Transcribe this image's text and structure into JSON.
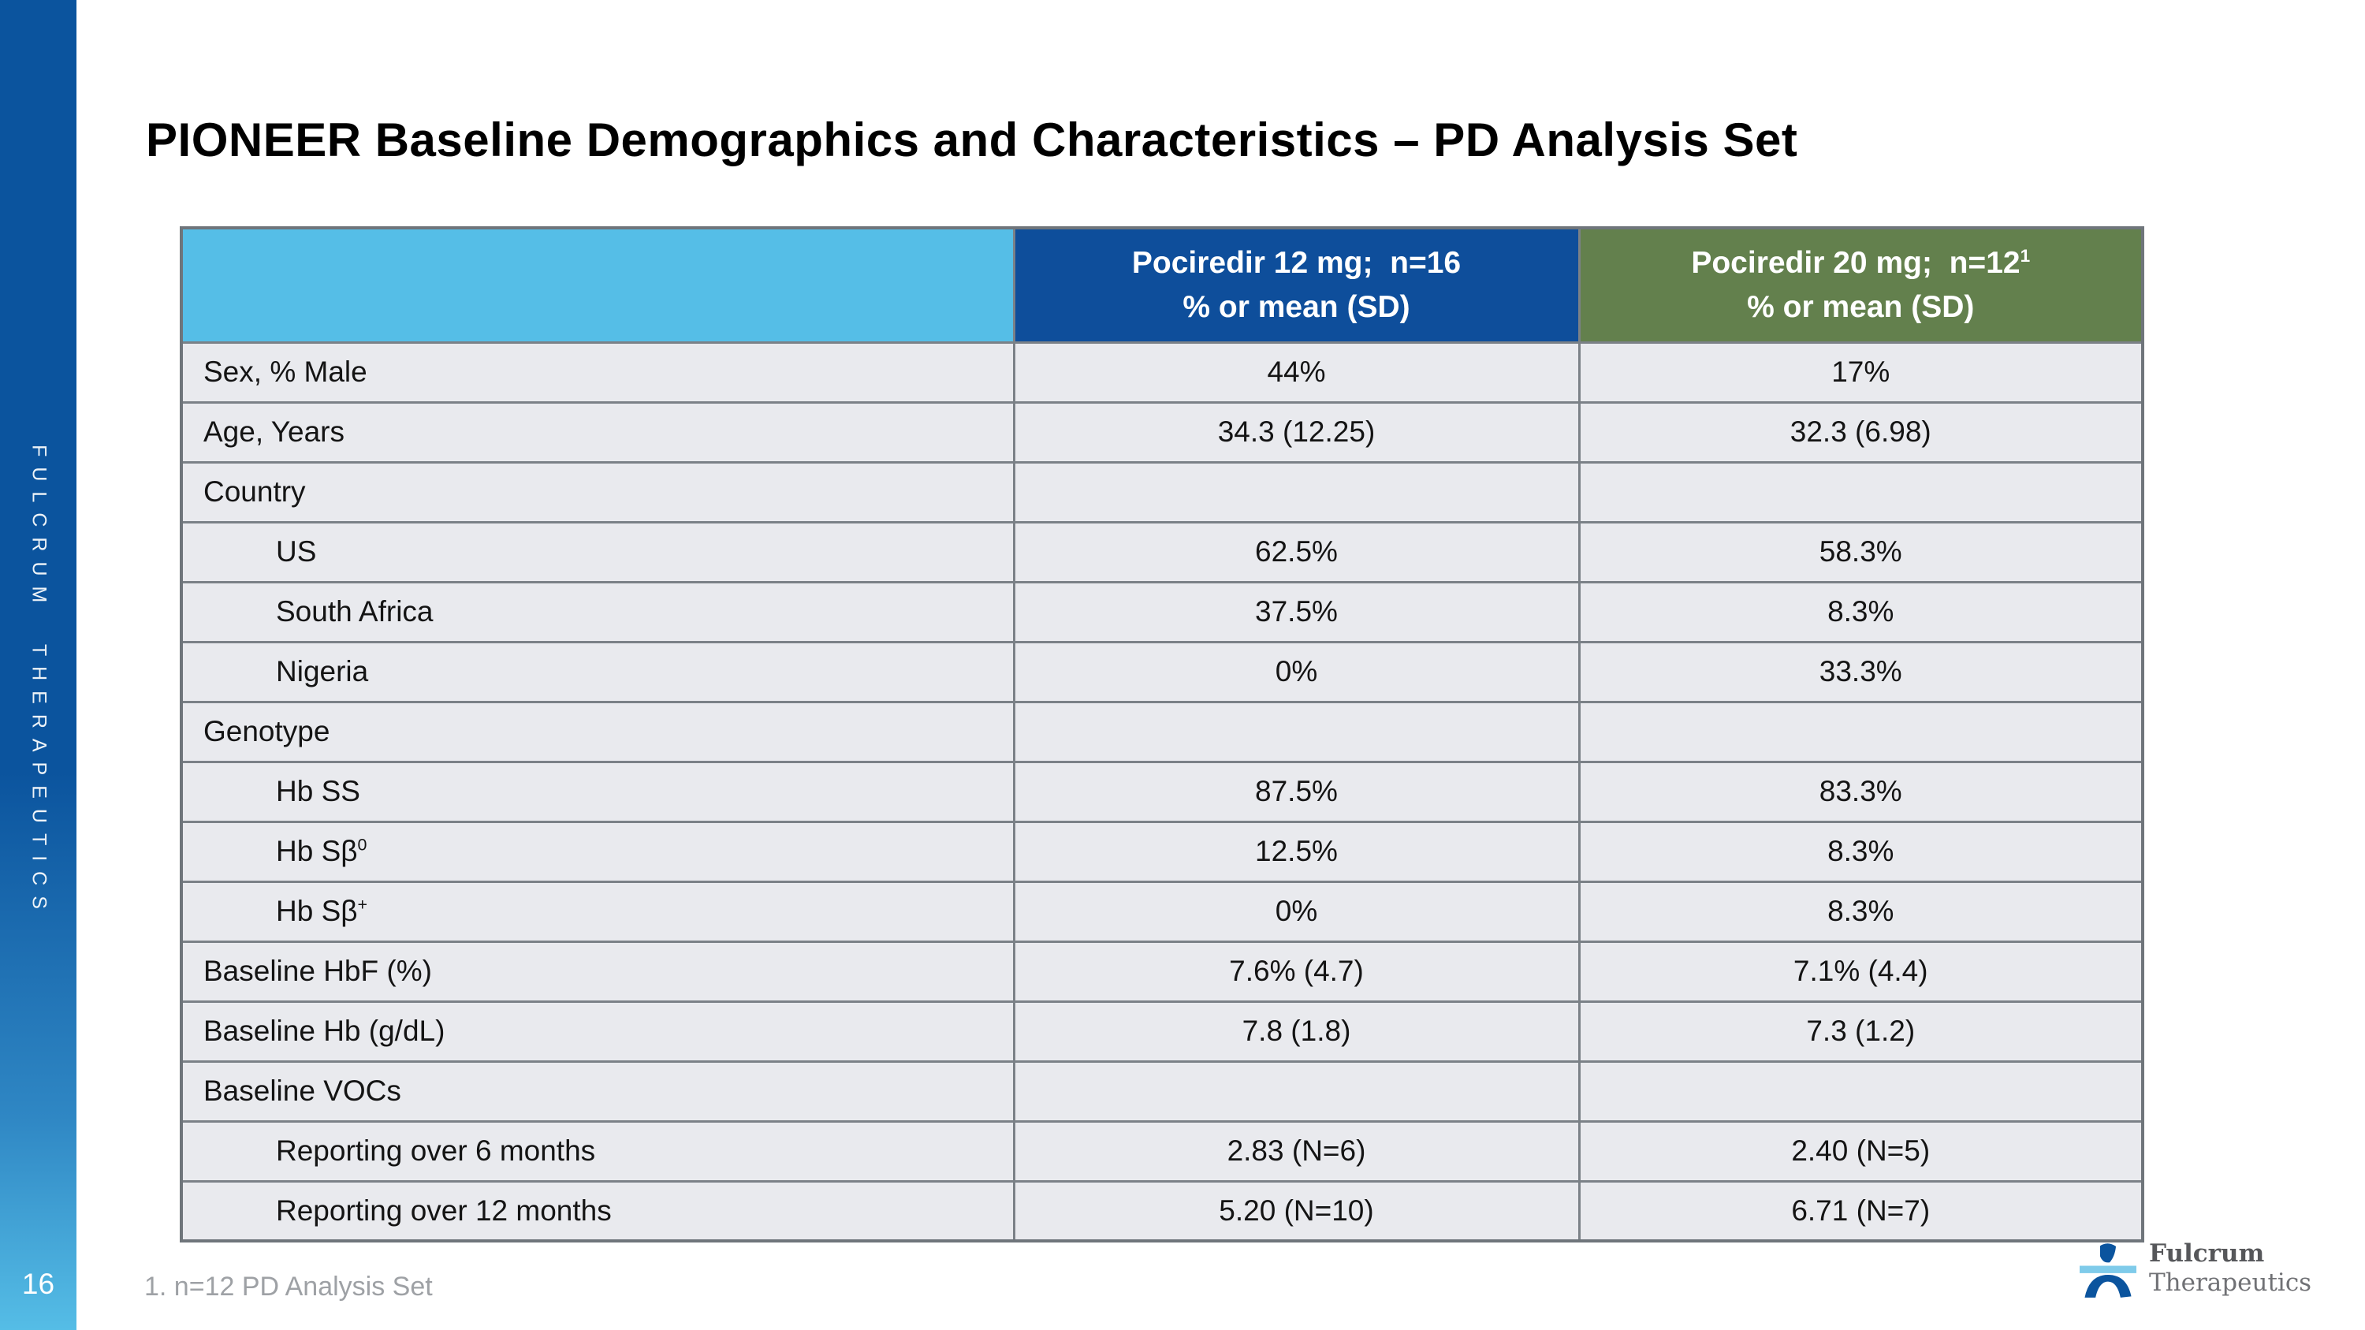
{
  "slide": {
    "title": "PIONEER Baseline Demographics and Characteristics – PD Analysis Set",
    "page_number": "16",
    "footnote": "1. n=12 PD Analysis Set"
  },
  "sidebar": {
    "brand_vertical": "FULCRUM THERAPEUTICS",
    "gradient_top": "#0B549E",
    "gradient_bottom": "#55BDE6"
  },
  "table": {
    "header": {
      "col1_label": "",
      "col1_bg": "#55BEE7",
      "col2": {
        "line1": "Pociredir 12 mg;  n=16",
        "line2": "% or mean (SD)",
        "bg": "#0E4E9B"
      },
      "col3": {
        "line1": "Pociredir 20 mg;  n=12",
        "line1_sup": "1",
        "line2": "% or mean (SD)",
        "bg": "#63804D"
      }
    },
    "rows": [
      {
        "label": "Sex, % Male",
        "sup": "",
        "indent": false,
        "v1": "44%",
        "v2": "17%"
      },
      {
        "label": "Age, Years",
        "sup": "",
        "indent": false,
        "v1": "34.3 (12.25)",
        "v2": "32.3 (6.98)"
      },
      {
        "label": "Country",
        "sup": "",
        "indent": false,
        "v1": "",
        "v2": ""
      },
      {
        "label": "US",
        "sup": "",
        "indent": true,
        "v1": "62.5%",
        "v2": "58.3%"
      },
      {
        "label": "South Africa",
        "sup": "",
        "indent": true,
        "v1": "37.5%",
        "v2": "8.3%"
      },
      {
        "label": "Nigeria",
        "sup": "",
        "indent": true,
        "v1": "0%",
        "v2": "33.3%"
      },
      {
        "label": "Genotype",
        "sup": "",
        "indent": false,
        "v1": "",
        "v2": ""
      },
      {
        "label": "Hb SS",
        "sup": "",
        "indent": true,
        "v1": "87.5%",
        "v2": "83.3%"
      },
      {
        "label": "Hb Sβ",
        "sup": "0",
        "indent": true,
        "v1": "12.5%",
        "v2": "8.3%"
      },
      {
        "label": "Hb Sβ",
        "sup": "+",
        "indent": true,
        "v1": "0%",
        "v2": "8.3%"
      },
      {
        "label": "Baseline HbF (%)",
        "sup": "",
        "indent": false,
        "v1": "7.6% (4.7)",
        "v2": "7.1% (4.4)"
      },
      {
        "label": "Baseline Hb (g/dL)",
        "sup": "",
        "indent": false,
        "v1": "7.8 (1.8)",
        "v2": "7.3 (1.2)"
      },
      {
        "label": "Baseline VOCs",
        "sup": "",
        "indent": false,
        "v1": "",
        "v2": ""
      },
      {
        "label": "Reporting over 6 months",
        "sup": "",
        "indent": true,
        "v1": "2.83 (N=6)",
        "v2": "2.40 (N=5)"
      },
      {
        "label": "Reporting over 12 months",
        "sup": "",
        "indent": true,
        "v1": "5.20 (N=10)",
        "v2": "6.71 (N=7)"
      }
    ]
  },
  "logo": {
    "name_line1": "Fulcrum",
    "name_line2": "Therapeutics",
    "icon_dark": "#0B549E",
    "icon_light": "#7FCBEA"
  }
}
